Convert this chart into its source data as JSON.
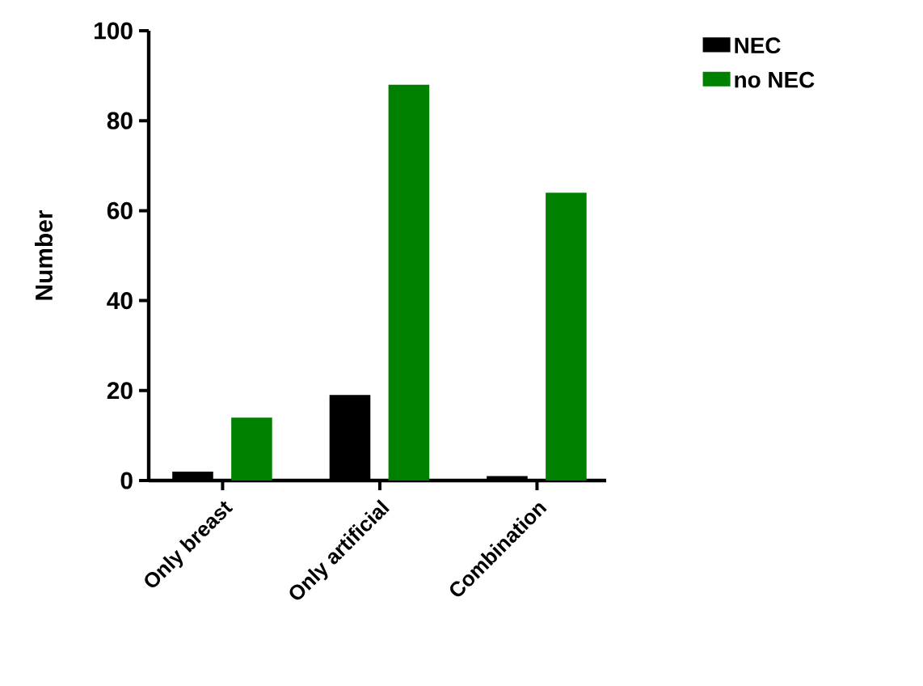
{
  "chart_data": {
    "type": "bar",
    "ylabel": "Number",
    "categories": [
      "Only breast",
      "Only artificial",
      "Combination"
    ],
    "series": [
      {
        "name": "NEC",
        "color": "#000000",
        "values": [
          2,
          19,
          1
        ]
      },
      {
        "name": "no NEC",
        "color": "#008000",
        "values": [
          14,
          88,
          64
        ]
      }
    ],
    "ylim": [
      0,
      100
    ],
    "yticks": [
      0,
      20,
      40,
      60,
      80,
      100
    ],
    "grid": false,
    "legend": "top right"
  }
}
